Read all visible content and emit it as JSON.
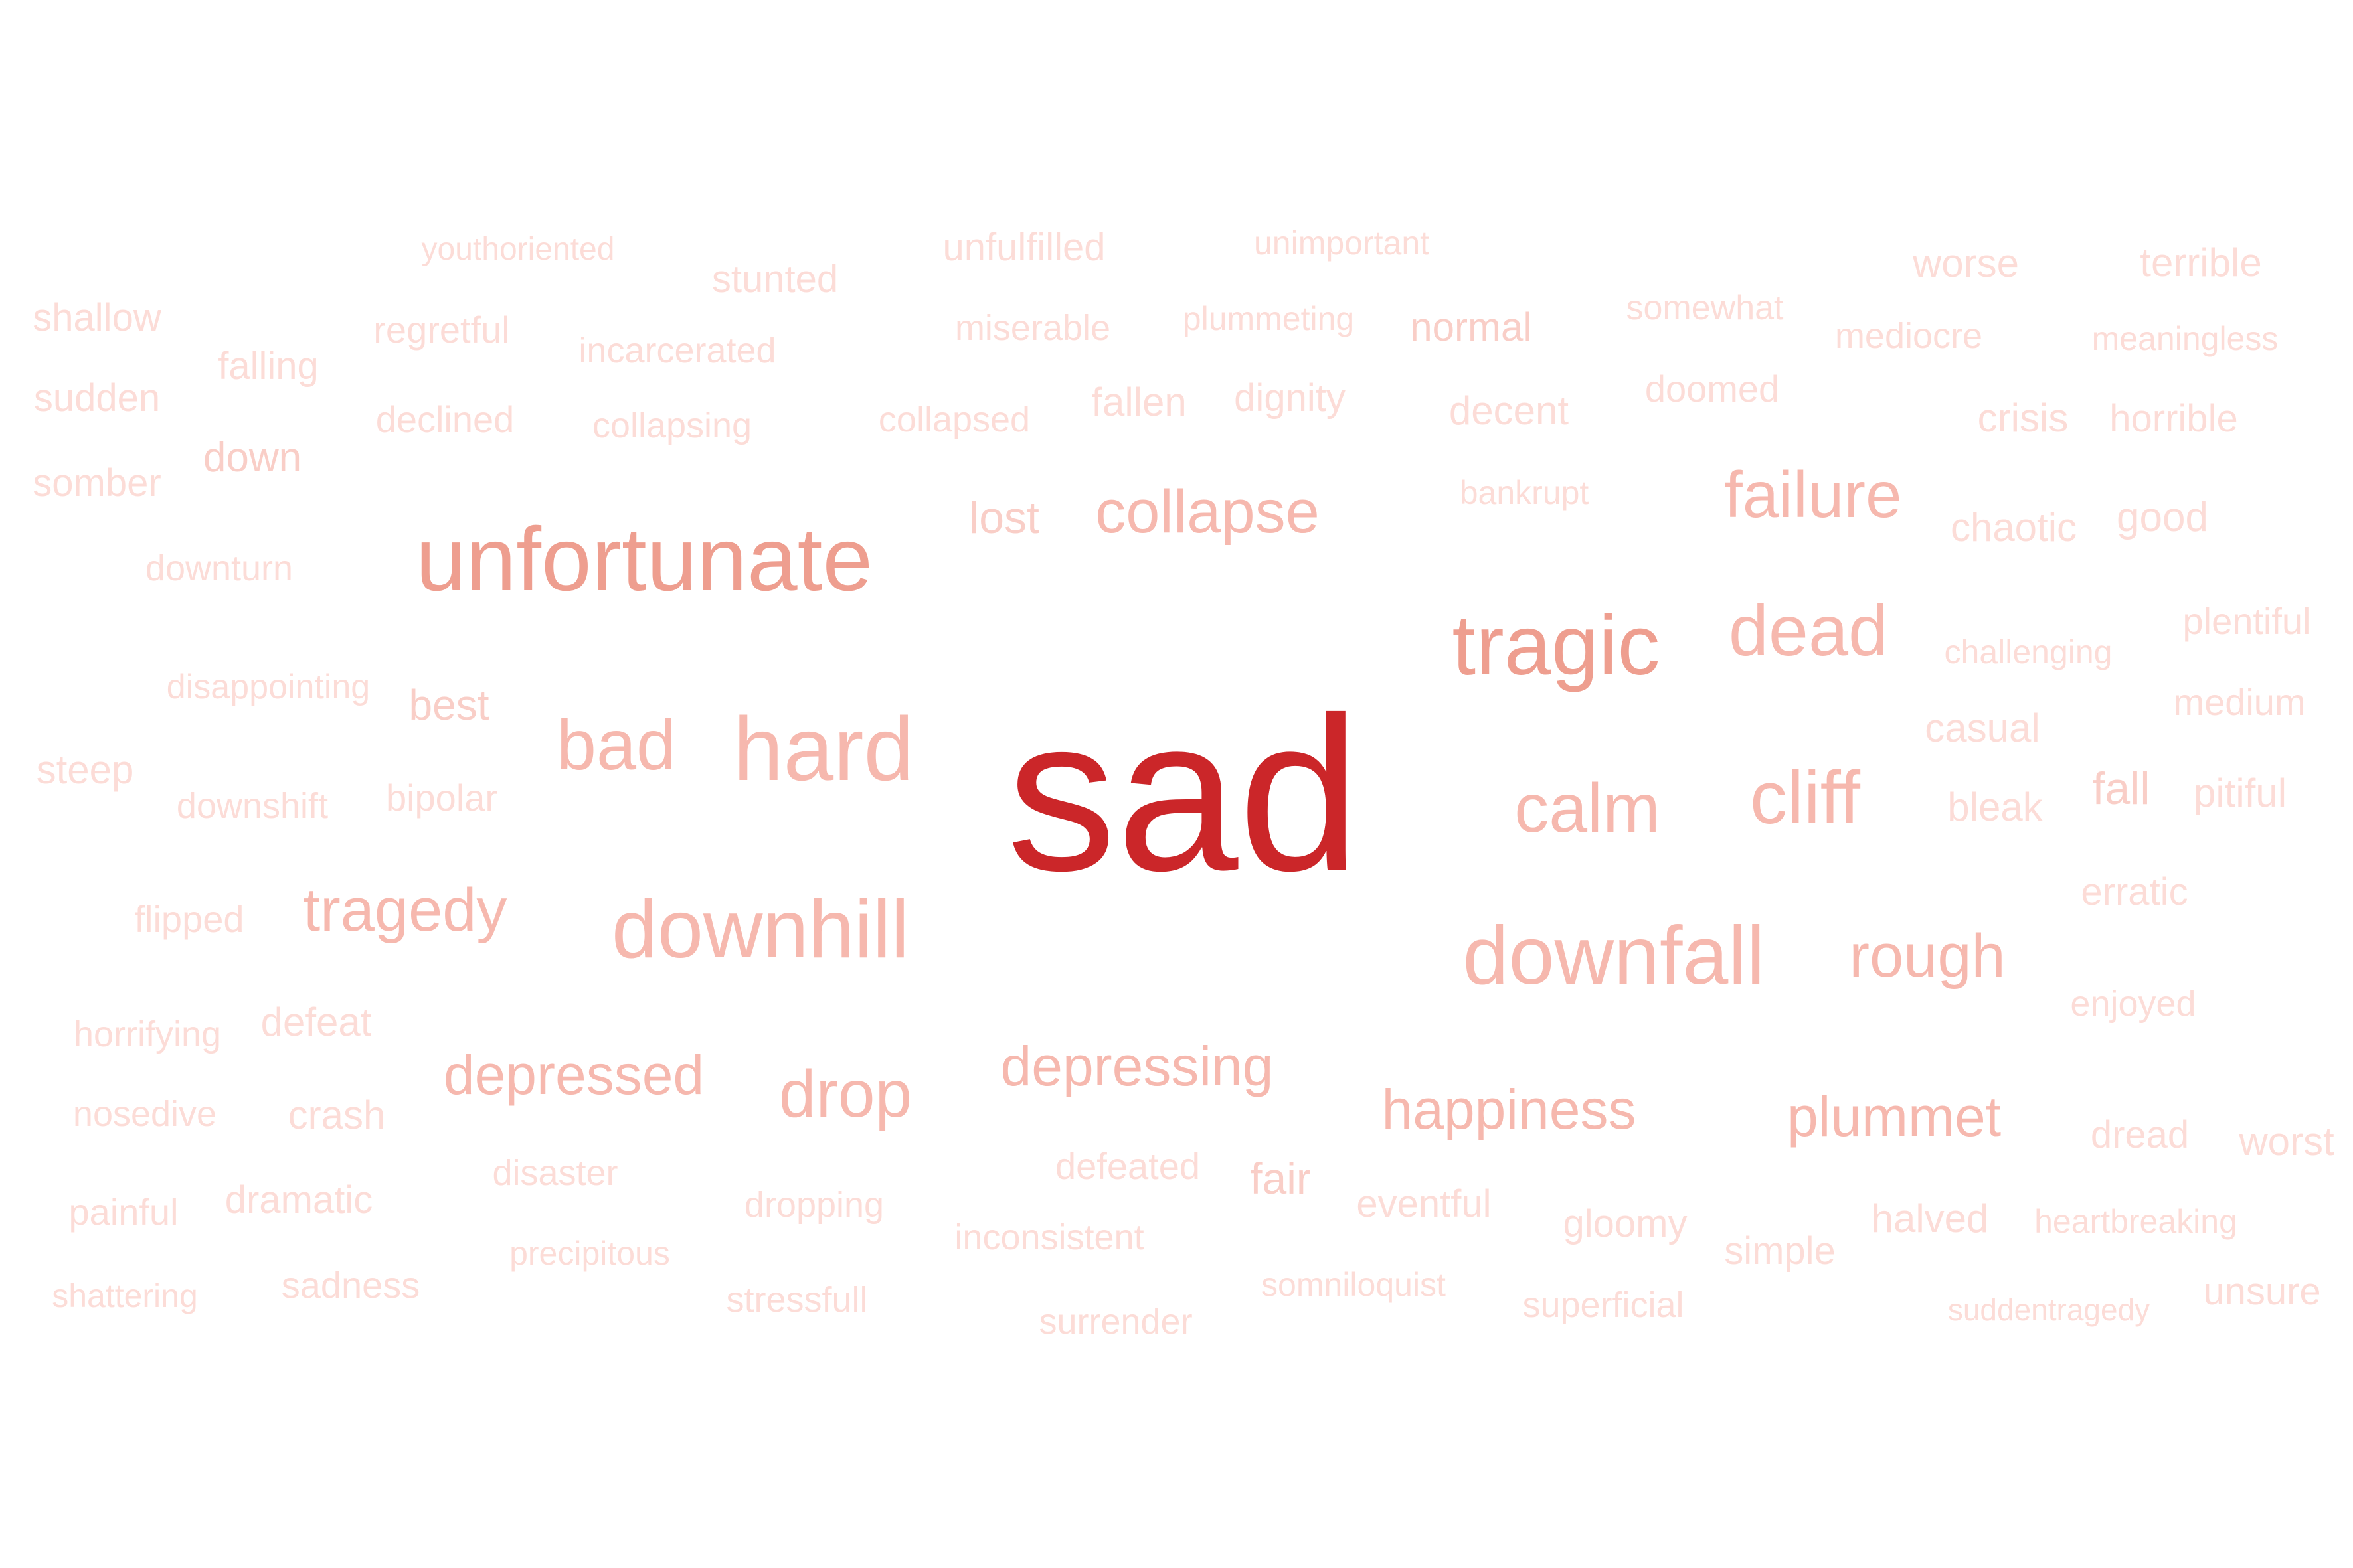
{
  "word_cloud": {
    "colors": {
      "max": "#cb2629",
      "strong": "#ee9e8f",
      "medium": "#f6b8ae",
      "light": "#f9cec7",
      "faint": "#fcdcd7"
    },
    "words": [
      {
        "text": "sad",
        "weight": 1.0
      },
      {
        "text": "unfortunate",
        "weight": 0.55
      },
      {
        "text": "tragic",
        "weight": 0.5
      },
      {
        "text": "hard",
        "weight": 0.48
      },
      {
        "text": "downhill",
        "weight": 0.45
      },
      {
        "text": "downfall",
        "weight": 0.45
      },
      {
        "text": "dead",
        "weight": 0.4
      },
      {
        "text": "cliff",
        "weight": 0.4
      },
      {
        "text": "calm",
        "weight": 0.38
      },
      {
        "text": "bad",
        "weight": 0.38
      },
      {
        "text": "failure",
        "weight": 0.36
      },
      {
        "text": "collapse",
        "weight": 0.34
      },
      {
        "text": "rough",
        "weight": 0.34
      },
      {
        "text": "tragedy",
        "weight": 0.32
      },
      {
        "text": "drop",
        "weight": 0.34
      },
      {
        "text": "depressed",
        "weight": 0.3
      },
      {
        "text": "depressing",
        "weight": 0.3
      },
      {
        "text": "happiness",
        "weight": 0.3
      },
      {
        "text": "plummet",
        "weight": 0.3
      },
      {
        "text": "lost",
        "weight": 0.2
      },
      {
        "text": "youthoriented",
        "weight": 0.08
      },
      {
        "text": "unfulfilled",
        "weight": 0.12
      },
      {
        "text": "unimportant",
        "weight": 0.1
      },
      {
        "text": "worse",
        "weight": 0.14
      },
      {
        "text": "terrible",
        "weight": 0.14
      },
      {
        "text": "stunted",
        "weight": 0.14
      },
      {
        "text": "shallow",
        "weight": 0.14
      },
      {
        "text": "regretful",
        "weight": 0.14
      },
      {
        "text": "miserable",
        "weight": 0.12
      },
      {
        "text": "plummeting",
        "weight": 0.1
      },
      {
        "text": "normal",
        "weight": 0.16
      },
      {
        "text": "somewhat",
        "weight": 0.1
      },
      {
        "text": "mediocre",
        "weight": 0.12
      },
      {
        "text": "meaningless",
        "weight": 0.1
      },
      {
        "text": "falling",
        "weight": 0.14
      },
      {
        "text": "incarcerated",
        "weight": 0.1
      },
      {
        "text": "sudden",
        "weight": 0.14
      },
      {
        "text": "declined",
        "weight": 0.12
      },
      {
        "text": "collapsing",
        "weight": 0.1
      },
      {
        "text": "collapsed",
        "weight": 0.1
      },
      {
        "text": "fallen",
        "weight": 0.14
      },
      {
        "text": "dignity",
        "weight": 0.12
      },
      {
        "text": "decent",
        "weight": 0.14
      },
      {
        "text": "doomed",
        "weight": 0.12
      },
      {
        "text": "crisis",
        "weight": 0.14
      },
      {
        "text": "horrible",
        "weight": 0.14
      },
      {
        "text": "down",
        "weight": 0.16
      },
      {
        "text": "somber",
        "weight": 0.12
      },
      {
        "text": "bankrupt",
        "weight": 0.1
      },
      {
        "text": "chaotic",
        "weight": 0.14
      },
      {
        "text": "good",
        "weight": 0.14
      },
      {
        "text": "downturn",
        "weight": 0.1
      },
      {
        "text": "plentiful",
        "weight": 0.12
      },
      {
        "text": "challenging",
        "weight": 0.1
      },
      {
        "text": "disappointing",
        "weight": 0.1
      },
      {
        "text": "best",
        "weight": 0.16
      },
      {
        "text": "medium",
        "weight": 0.12
      },
      {
        "text": "casual",
        "weight": 0.14
      },
      {
        "text": "steep",
        "weight": 0.14
      },
      {
        "text": "downshift",
        "weight": 0.1
      },
      {
        "text": "bipolar",
        "weight": 0.12
      },
      {
        "text": "bleak",
        "weight": 0.14
      },
      {
        "text": "fall",
        "weight": 0.16
      },
      {
        "text": "pitiful",
        "weight": 0.14
      },
      {
        "text": "flipped",
        "weight": 0.12
      },
      {
        "text": "erratic",
        "weight": 0.14
      },
      {
        "text": "enjoyed",
        "weight": 0.12
      },
      {
        "text": "horrifying",
        "weight": 0.1
      },
      {
        "text": "defeat",
        "weight": 0.14
      },
      {
        "text": "nosedive",
        "weight": 0.1
      },
      {
        "text": "crash",
        "weight": 0.14
      },
      {
        "text": "dread",
        "weight": 0.14
      },
      {
        "text": "worst",
        "weight": 0.14
      },
      {
        "text": "disaster",
        "weight": 0.12
      },
      {
        "text": "defeated",
        "weight": 0.12
      },
      {
        "text": "fair",
        "weight": 0.16
      },
      {
        "text": "eventful",
        "weight": 0.12
      },
      {
        "text": "painful",
        "weight": 0.12
      },
      {
        "text": "dramatic",
        "weight": 0.14
      },
      {
        "text": "dropping",
        "weight": 0.12
      },
      {
        "text": "halved",
        "weight": 0.14
      },
      {
        "text": "heartbreaking",
        "weight": 0.1
      },
      {
        "text": "gloomy",
        "weight": 0.14
      },
      {
        "text": "precipitous",
        "weight": 0.1
      },
      {
        "text": "inconsistent",
        "weight": 0.1
      },
      {
        "text": "simple",
        "weight": 0.14
      },
      {
        "text": "sadness",
        "weight": 0.14
      },
      {
        "text": "shattering",
        "weight": 0.1
      },
      {
        "text": "somniloquist",
        "weight": 0.1
      },
      {
        "text": "unsure",
        "weight": 0.14
      },
      {
        "text": "stressfull",
        "weight": 0.12
      },
      {
        "text": "superficial",
        "weight": 0.1
      },
      {
        "text": "suddentragedy",
        "weight": 0.08
      },
      {
        "text": "surrender",
        "weight": 0.12
      }
    ]
  }
}
